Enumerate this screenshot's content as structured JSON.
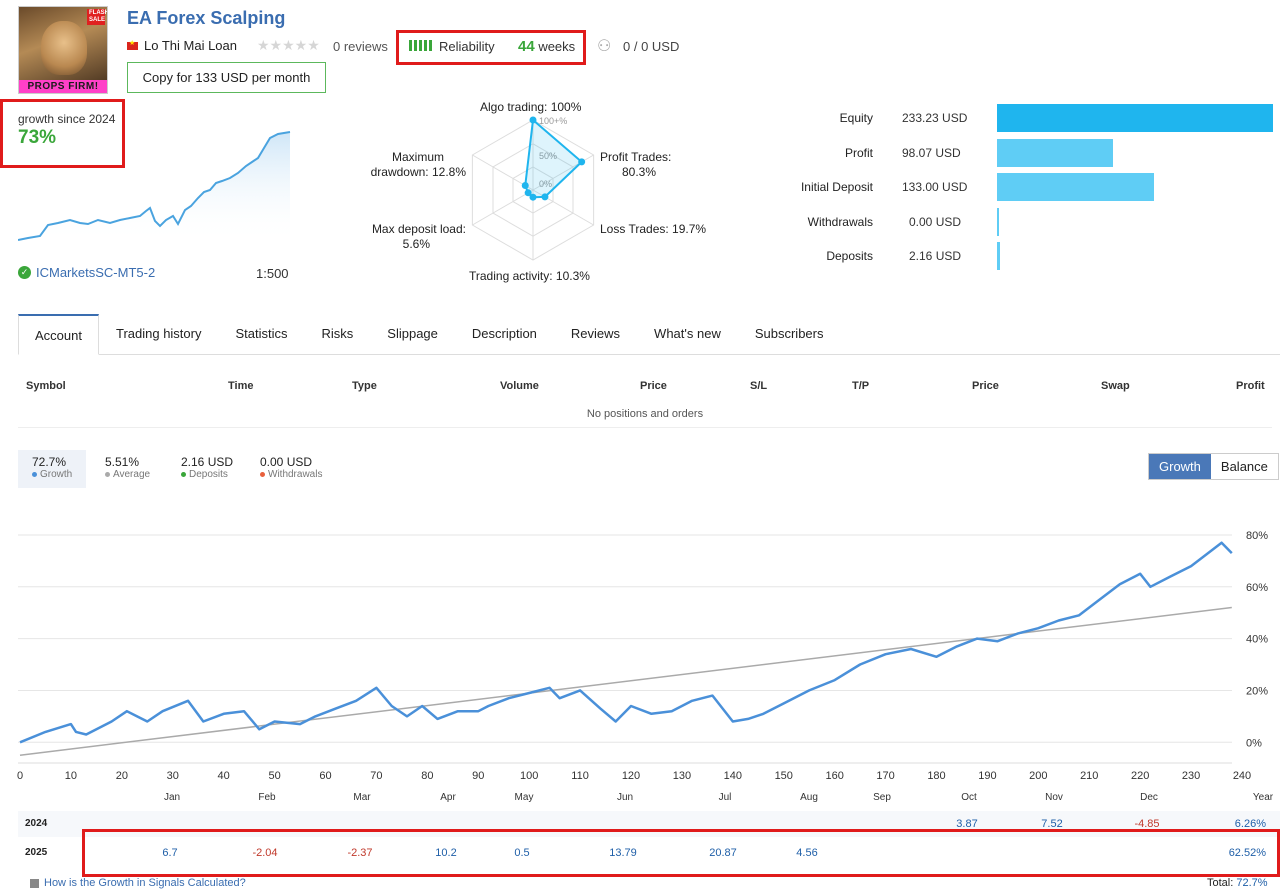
{
  "header": {
    "logo_text": "PROPS FIRM!",
    "logo_sale_text": "FLASH SALE",
    "title": "EA Forex Scalping",
    "author": "Lo Thi Mai Loan",
    "reviews": "0 reviews",
    "reliability_label": "Reliability",
    "weeks_value": "44",
    "weeks_unit": "weeks",
    "subscribers": "0 / 0 USD",
    "copy_button": "Copy for 133 USD per month"
  },
  "summary": {
    "growth_label": "growth since 2024",
    "growth_value": "73%",
    "broker": "ICMarketsSC-MT5-2",
    "leverage": "1:500",
    "mini_chart_growth": [
      0,
      2,
      10,
      8,
      11,
      15,
      30,
      22,
      45,
      70,
      100
    ]
  },
  "radar": {
    "algo": "Algo trading: 100%",
    "profit_l1": "Profit Trades:",
    "profit_l2": "80.3%",
    "loss": "Loss Trades: 19.7%",
    "activity": "Trading activity: 10.3%",
    "deposit_l1": "Max deposit load:",
    "deposit_l2": "5.6%",
    "drawdown_l1": "Maximum",
    "drawdown_l2": "drawdown: 12.8%",
    "ring_100": "100+%",
    "ring_50": "50%",
    "ring_0": "0%",
    "values_percent": [
      100,
      80.3,
      19.7,
      10.3,
      5.6,
      12.8
    ]
  },
  "balance": {
    "accent": "#1fb5ee",
    "light": "#5fcdf5",
    "max_value": 233.23,
    "rows": [
      {
        "label": "Equity",
        "value": "233.23 USD",
        "amount": 233.23
      },
      {
        "label": "Profit",
        "value": "98.07 USD",
        "amount": 98.07
      },
      {
        "label": "Initial Deposit",
        "value": "133.00 USD",
        "amount": 133.0
      },
      {
        "label": "Withdrawals",
        "value": "0.00 USD",
        "amount": 0.0
      },
      {
        "label": "Deposits",
        "value": "2.16 USD",
        "amount": 2.16
      }
    ]
  },
  "tabs": [
    "Account",
    "Trading history",
    "Statistics",
    "Risks",
    "Slippage",
    "Description",
    "Reviews",
    "What's new",
    "Subscribers"
  ],
  "positions": {
    "headers": [
      "Symbol",
      "Time",
      "Type",
      "Volume",
      "Price",
      "S/L",
      "T/P",
      "Price",
      "Swap",
      "Profit"
    ],
    "empty": "No positions and orders"
  },
  "stats": [
    {
      "value": "72.7%",
      "label": "Growth",
      "color": "#4a90d9"
    },
    {
      "value": "5.51%",
      "label": "Average",
      "color": "#aaaaaa"
    },
    {
      "value": "2.16 USD",
      "label": "Deposits",
      "color": "#3aa63a"
    },
    {
      "value": "0.00 USD",
      "label": "Withdrawals",
      "color": "#e8603c"
    }
  ],
  "toggle": {
    "growth": "Growth",
    "balance": "Balance"
  },
  "chart_data": {
    "type": "line",
    "xlim": [
      0,
      240
    ],
    "ylim": [
      -8,
      85
    ],
    "x_ticks": [
      "0",
      "10",
      "20",
      "30",
      "40",
      "50",
      "60",
      "70",
      "80",
      "90",
      "100",
      "110",
      "120",
      "130",
      "140",
      "150",
      "160",
      "170",
      "180",
      "190",
      "200",
      "210",
      "220",
      "230",
      "240"
    ],
    "y_ticks": [
      "0%",
      "20%",
      "40%",
      "60%",
      "80%"
    ],
    "grid": true,
    "series": [
      {
        "name": "Growth",
        "color": "#4a90d9",
        "x": [
          0,
          5,
          10,
          11,
          13,
          18,
          21,
          23,
          25,
          28,
          33,
          36,
          40,
          44,
          47,
          50,
          55,
          58,
          62,
          66,
          70,
          73,
          76,
          79,
          82,
          86,
          90,
          92,
          96,
          100,
          104,
          106,
          110,
          114,
          117,
          120,
          124,
          128,
          132,
          136,
          140,
          143,
          146,
          150,
          155,
          160,
          165,
          170,
          175,
          180,
          184,
          188,
          192,
          196,
          200,
          204,
          208,
          212,
          216,
          220,
          222,
          226,
          230,
          234,
          236,
          238
        ],
        "y": [
          0,
          4,
          7,
          4,
          3,
          8,
          12,
          10,
          8,
          12,
          16,
          8,
          11,
          12,
          5,
          8,
          7,
          10,
          13,
          16,
          21,
          14,
          10,
          14,
          9,
          12,
          12,
          14,
          17,
          19,
          21,
          17,
          20,
          13,
          8,
          14,
          11,
          12,
          16,
          18,
          8,
          9,
          11,
          15,
          20,
          24,
          30,
          34,
          36,
          33,
          37,
          40,
          39,
          42,
          44,
          47,
          49,
          55,
          61,
          65,
          60,
          64,
          68,
          74,
          77,
          73
        ]
      },
      {
        "name": "Average",
        "color": "#aaaaaa",
        "x": [
          0,
          238
        ],
        "y": [
          -5,
          52
        ]
      }
    ]
  },
  "months": [
    "Jan",
    "Feb",
    "Mar",
    "Apr",
    "May",
    "Jun",
    "Jul",
    "Aug",
    "Sep",
    "Oct",
    "Nov",
    "Dec",
    "Year"
  ],
  "yearly": [
    {
      "year": "2024",
      "cells": [
        "",
        "",
        "",
        "",
        "",
        "",
        "",
        "",
        "",
        "3.87",
        "7.52",
        "-4.85",
        "6.26%"
      ]
    },
    {
      "year": "2025",
      "cells": [
        "6.7",
        "-2.04",
        "-2.37",
        "10.2",
        "0.5",
        "13.79",
        "20.87",
        "4.56",
        "",
        "",
        "",
        "",
        "62.52%"
      ]
    }
  ],
  "footer": {
    "link": "How is the Growth in Signals Calculated?",
    "total_label": "Total:",
    "total_value": "72.7%"
  }
}
